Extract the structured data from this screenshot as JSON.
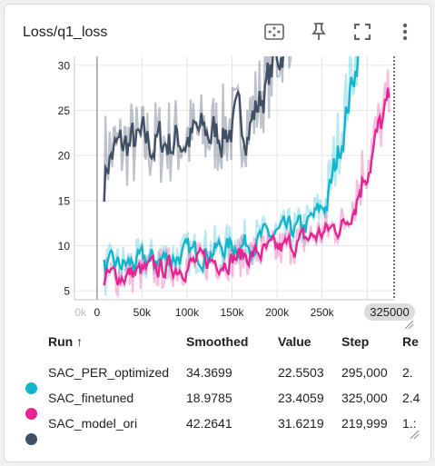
{
  "card": {
    "title": "Loss/q1_loss"
  },
  "toolbar": {
    "fit_icon": "fit-to-data-icon",
    "pin_icon": "pin-icon",
    "fullscreen_icon": "fullscreen-icon",
    "more_icon": "more-vert-icon"
  },
  "chart_data": {
    "type": "line",
    "title": "Loss/q1_loss",
    "xlabel": "",
    "ylabel": "",
    "x_ticks": [
      "0",
      "50k",
      "100k",
      "150k",
      "200k",
      "250k",
      "3"
    ],
    "x_tick_partial_left": "0k",
    "y_ticks": [
      "5",
      "10",
      "15",
      "20",
      "25",
      "30"
    ],
    "xlim": [
      -25000,
      330000
    ],
    "ylim": [
      4,
      31
    ],
    "hover_step_label": "325000",
    "grid": true,
    "series": [
      {
        "name": "SAC_PER_optimized",
        "color": "#12b5cb",
        "smoothed": 34.3699,
        "value": 22.5503,
        "step": 295000
      },
      {
        "name": "SAC_finetuned",
        "color": "#e52592",
        "smoothed": 18.9785,
        "value": 23.4059,
        "step": 325000
      },
      {
        "name": "SAC_model_ori",
        "color": "#425066",
        "smoothed": 42.2641,
        "value": 31.6219,
        "step": 219999
      }
    ]
  },
  "table": {
    "headers": {
      "run": "Run ↑",
      "smoothed": "Smoothed",
      "value": "Value",
      "step": "Step",
      "rel": "Re"
    },
    "rows": [
      {
        "run": "SAC_PER_optimized",
        "smoothed": "34.3699",
        "value": "22.5503",
        "step": "295,000",
        "rel": "2.",
        "color": "#12b5cb"
      },
      {
        "run": "SAC_finetuned",
        "smoothed": "18.9785",
        "value": "23.4059",
        "step": "325,000",
        "rel": "2.4",
        "color": "#e52592"
      },
      {
        "run": "SAC_model_ori",
        "smoothed": "42.2641",
        "value": "31.6219",
        "step": "219,999",
        "rel": "1.:",
        "color": "#425066"
      }
    ]
  }
}
